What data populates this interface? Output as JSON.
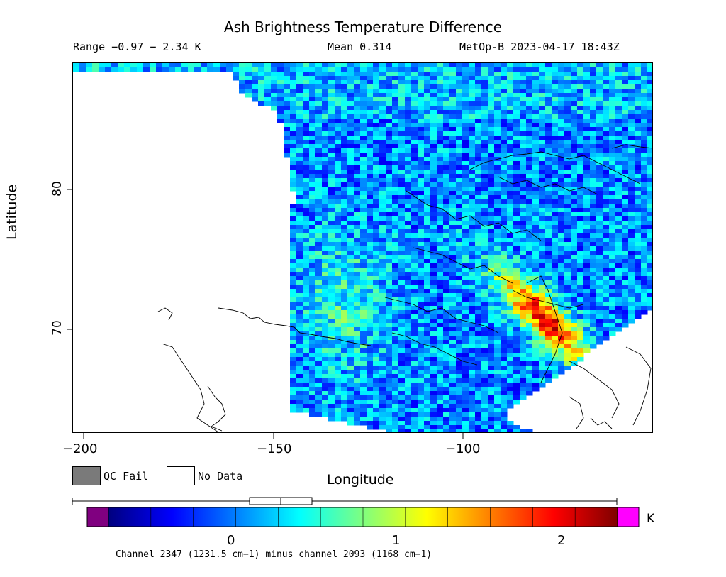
{
  "title": "Ash Brightness Temperature Difference",
  "subtitle": {
    "range": "Range −0.97 − 2.34 K",
    "mean": "Mean 0.314",
    "satellite_time": "MetOp-B 2023-04-17 18:43Z"
  },
  "axes": {
    "xlabel": "Longitude",
    "ylabel": "Latitude",
    "xticks": [
      "−200",
      "−150",
      "−100"
    ],
    "yticks": [
      "80",
      "70"
    ]
  },
  "legend": {
    "qc_fail": "QC Fail",
    "no_data": "No Data",
    "qc_fail_color": "#7a7a7a",
    "no_data_color": "#ffffff"
  },
  "colorbar": {
    "unit": "K",
    "ticks": [
      "0",
      "1",
      "2"
    ],
    "under_color": "#800080",
    "over_color": "#ff00ff",
    "stops": [
      "#00007f",
      "#0000ff",
      "#007fff",
      "#00ffff",
      "#7fff7f",
      "#ffff00",
      "#ff7f00",
      "#ff0000",
      "#7f0000"
    ],
    "range": [
      -0.75,
      2.34
    ],
    "mean_marker_range": [
      0.1,
      0.5
    ]
  },
  "footnote": "Channel 2347 (1231.5 cm−1) minus channel 2093 (1168 cm−1)",
  "map": {
    "region": "Alaska, Canadian Arctic Archipelago, Greenland",
    "lon_range": [
      -203,
      -50
    ],
    "lat_range": [
      63,
      89
    ],
    "data_color_dominant": "#1f6fff"
  }
}
